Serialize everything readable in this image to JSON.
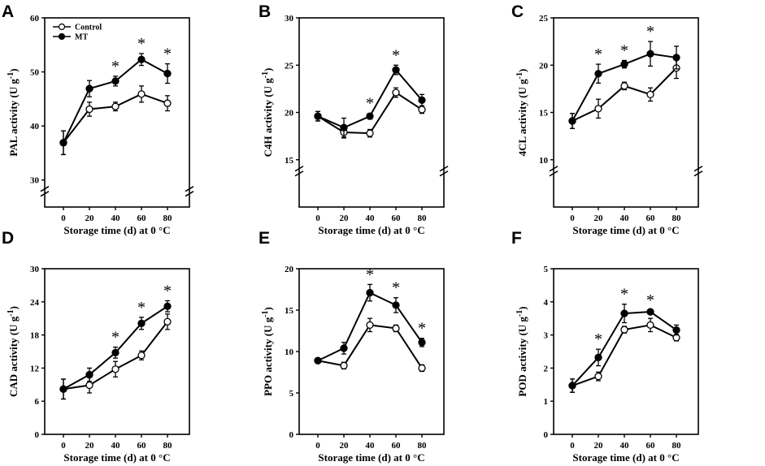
{
  "chart_data": [
    {
      "type": "line",
      "panel_label": "A",
      "ylabel": "PAL activity (U g",
      "ylabel_sup": "-1",
      "ylabel_close": ")",
      "xlabel": "Storage time (d) at 0 °C",
      "x": [
        0,
        20,
        40,
        60,
        80
      ],
      "x_ticks": [
        "0",
        "20",
        "40",
        "60",
        "80"
      ],
      "y_ticks": [
        {
          "value": 30,
          "label": "30"
        },
        {
          "value": 40,
          "label": "40"
        },
        {
          "value": 50,
          "label": "50"
        },
        {
          "value": 60,
          "label": "60"
        }
      ],
      "ylim": [
        25,
        60
      ],
      "axis_break_at": 30,
      "series": [
        {
          "name": "Control",
          "marker": "open-circle",
          "values": [
            36.9,
            43.1,
            43.6,
            45.9,
            44.2
          ],
          "errors": [
            2.2,
            1.3,
            0.8,
            1.5,
            1.4
          ]
        },
        {
          "name": "MT",
          "marker": "filled-circle",
          "values": [
            36.9,
            46.9,
            48.3,
            52.3,
            49.7
          ],
          "errors": [
            2.2,
            1.5,
            0.9,
            1.1,
            1.8
          ]
        }
      ],
      "significance": [
        "",
        "",
        "*",
        "*",
        "*"
      ],
      "legend": [
        "Control",
        "MT"
      ],
      "legend_position": "top-left"
    },
    {
      "type": "line",
      "panel_label": "B",
      "ylabel": "C4H activity (U g",
      "ylabel_sup": "-1",
      "ylabel_close": ")",
      "xlabel": "Storage time (d) at 0 °C",
      "x": [
        0,
        20,
        40,
        60,
        80
      ],
      "x_ticks": [
        "0",
        "20",
        "40",
        "60",
        "80"
      ],
      "y_ticks": [
        {
          "value": 15,
          "label": "15"
        },
        {
          "value": 20,
          "label": "20"
        },
        {
          "value": 25,
          "label": "25"
        },
        {
          "value": 30,
          "label": "30"
        }
      ],
      "ylim": [
        10,
        30
      ],
      "axis_break_at": 15,
      "series": [
        {
          "name": "Control",
          "marker": "open-circle",
          "values": [
            19.6,
            17.9,
            17.8,
            22.1,
            20.3
          ],
          "errors": [
            0.5,
            0.6,
            0.4,
            0.5,
            0.4
          ]
        },
        {
          "name": "MT",
          "marker": "filled-circle",
          "values": [
            19.6,
            18.4,
            19.6,
            24.5,
            21.3
          ],
          "errors": [
            0.5,
            1.0,
            0.3,
            0.5,
            0.6
          ]
        }
      ],
      "significance": [
        "",
        "",
        "*",
        "*",
        ""
      ]
    },
    {
      "type": "line",
      "panel_label": "C",
      "ylabel": "4CL activity (U g",
      "ylabel_sup": "-1",
      "ylabel_close": ")",
      "xlabel": "Storage time (d) at 0 °C",
      "x": [
        0,
        20,
        40,
        60,
        80
      ],
      "x_ticks": [
        "0",
        "20",
        "40",
        "60",
        "80"
      ],
      "y_ticks": [
        {
          "value": 10,
          "label": "10"
        },
        {
          "value": 15,
          "label": "15"
        },
        {
          "value": 20,
          "label": "20"
        },
        {
          "value": 25,
          "label": "25"
        }
      ],
      "ylim": [
        5,
        25
      ],
      "axis_break_at": 10,
      "series": [
        {
          "name": "Control",
          "marker": "open-circle",
          "values": [
            14.1,
            15.4,
            17.8,
            16.9,
            19.7
          ],
          "errors": [
            0.8,
            1.0,
            0.4,
            0.7,
            1.1
          ]
        },
        {
          "name": "MT",
          "marker": "filled-circle",
          "values": [
            14.1,
            19.1,
            20.1,
            21.2,
            20.8
          ],
          "errors": [
            0.8,
            1.0,
            0.4,
            1.3,
            1.2
          ]
        }
      ],
      "significance": [
        "",
        "*",
        "*",
        "*",
        ""
      ]
    },
    {
      "type": "line",
      "panel_label": "D",
      "ylabel": "CAD activity (U g",
      "ylabel_sup": "-1",
      "ylabel_close": ")",
      "xlabel": "Storage time (d) at 0 °C",
      "x": [
        0,
        20,
        40,
        60,
        80
      ],
      "x_ticks": [
        "0",
        "20",
        "40",
        "60",
        "80"
      ],
      "y_ticks": [
        {
          "value": 0,
          "label": "0"
        },
        {
          "value": 6,
          "label": "6"
        },
        {
          "value": 12,
          "label": "12"
        },
        {
          "value": 18,
          "label": "18"
        },
        {
          "value": 24,
          "label": "24"
        },
        {
          "value": 30,
          "label": "30"
        }
      ],
      "ylim": [
        0,
        30
      ],
      "series": [
        {
          "name": "Control",
          "marker": "open-circle",
          "values": [
            8.2,
            8.9,
            11.8,
            14.3,
            20.4
          ],
          "errors": [
            1.8,
            1.4,
            1.4,
            0.8,
            1.4
          ]
        },
        {
          "name": "MT",
          "marker": "filled-circle",
          "values": [
            8.2,
            10.8,
            14.8,
            20.1,
            23.2
          ],
          "errors": [
            1.8,
            1.2,
            1.0,
            1.1,
            1.0
          ]
        }
      ],
      "significance": [
        "",
        "",
        "*",
        "*",
        "*"
      ]
    },
    {
      "type": "line",
      "panel_label": "E",
      "ylabel": "PPO activity (U g",
      "ylabel_sup": "-1",
      "ylabel_close": ")",
      "xlabel": "Storage time (d) at 0 °C",
      "x": [
        0,
        20,
        40,
        60,
        80
      ],
      "x_ticks": [
        "0",
        "20",
        "40",
        "60",
        "80"
      ],
      "y_ticks": [
        {
          "value": 0,
          "label": "0"
        },
        {
          "value": 5,
          "label": "5"
        },
        {
          "value": 10,
          "label": "10"
        },
        {
          "value": 15,
          "label": "15"
        },
        {
          "value": 20,
          "label": "20"
        }
      ],
      "ylim": [
        0,
        20
      ],
      "series": [
        {
          "name": "Control",
          "marker": "open-circle",
          "values": [
            8.9,
            8.3,
            13.2,
            12.8,
            8.0
          ],
          "errors": [
            0.3,
            0.4,
            0.8,
            0.4,
            0.4
          ]
        },
        {
          "name": "MT",
          "marker": "filled-circle",
          "values": [
            8.9,
            10.4,
            17.1,
            15.6,
            11.1
          ],
          "errors": [
            0.3,
            0.7,
            1.0,
            0.9,
            0.5
          ]
        }
      ],
      "significance": [
        "",
        "",
        "*",
        "*",
        "*"
      ]
    },
    {
      "type": "line",
      "panel_label": "F",
      "ylabel": "POD activity (U g",
      "ylabel_sup": "-1",
      "ylabel_close": ")",
      "xlabel": "Storage time (d) at 0 °C",
      "x": [
        0,
        20,
        40,
        60,
        80
      ],
      "x_ticks": [
        "0",
        "20",
        "40",
        "60",
        "80"
      ],
      "y_ticks": [
        {
          "value": 0,
          "label": "0"
        },
        {
          "value": 1,
          "label": "1"
        },
        {
          "value": 2,
          "label": "2"
        },
        {
          "value": 3,
          "label": "3"
        },
        {
          "value": 4,
          "label": "4"
        },
        {
          "value": 5,
          "label": "5"
        }
      ],
      "ylim": [
        0,
        5
      ],
      "series": [
        {
          "name": "Control",
          "marker": "open-circle",
          "values": [
            1.47,
            1.75,
            3.16,
            3.3,
            2.92
          ],
          "errors": [
            0.2,
            0.13,
            0.1,
            0.2,
            0.1
          ]
        },
        {
          "name": "MT",
          "marker": "filled-circle",
          "values": [
            1.47,
            2.32,
            3.65,
            3.7,
            3.15
          ],
          "errors": [
            0.2,
            0.25,
            0.28,
            0.05,
            0.15
          ]
        }
      ],
      "significance": [
        "",
        "*",
        "*",
        "*",
        ""
      ]
    }
  ]
}
